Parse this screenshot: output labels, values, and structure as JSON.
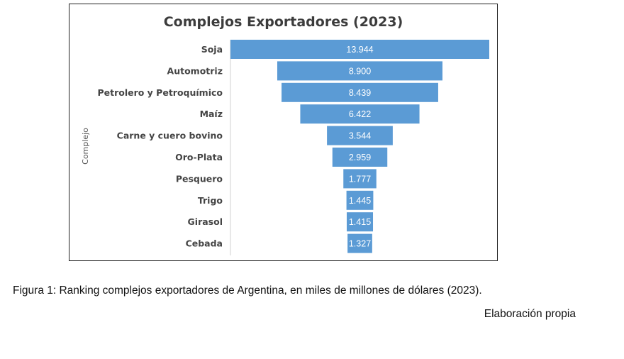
{
  "chart_data": {
    "type": "bar",
    "title": "Complejos Exportadores (2023)",
    "ylabel": "Complejo",
    "xlabel": "",
    "categories": [
      "Soja",
      "Automotriz",
      "Petrolero y Petroquímico",
      "Maíz",
      "Carne y cuero bovino",
      "Oro-Plata",
      "Pesquero",
      "Trigo",
      "Girasol",
      "Cebada"
    ],
    "values": [
      13944,
      8900,
      8439,
      6422,
      3544,
      2959,
      1777,
      1445,
      1415,
      1327
    ],
    "value_labels": [
      "13.944",
      "8.900",
      "8.439",
      "6.422",
      "3.544",
      "2.959",
      "1.777",
      "1.445",
      "1.415",
      "1.327"
    ],
    "orientation": "horizontal-funnel",
    "bar_color": "#5b9bd5",
    "grid": false,
    "legend": "none"
  },
  "caption": "Figura 1: Ranking complejos exportadores de Argentina, en miles de millones de dólares (2023).",
  "credit": "Elaboración propia"
}
